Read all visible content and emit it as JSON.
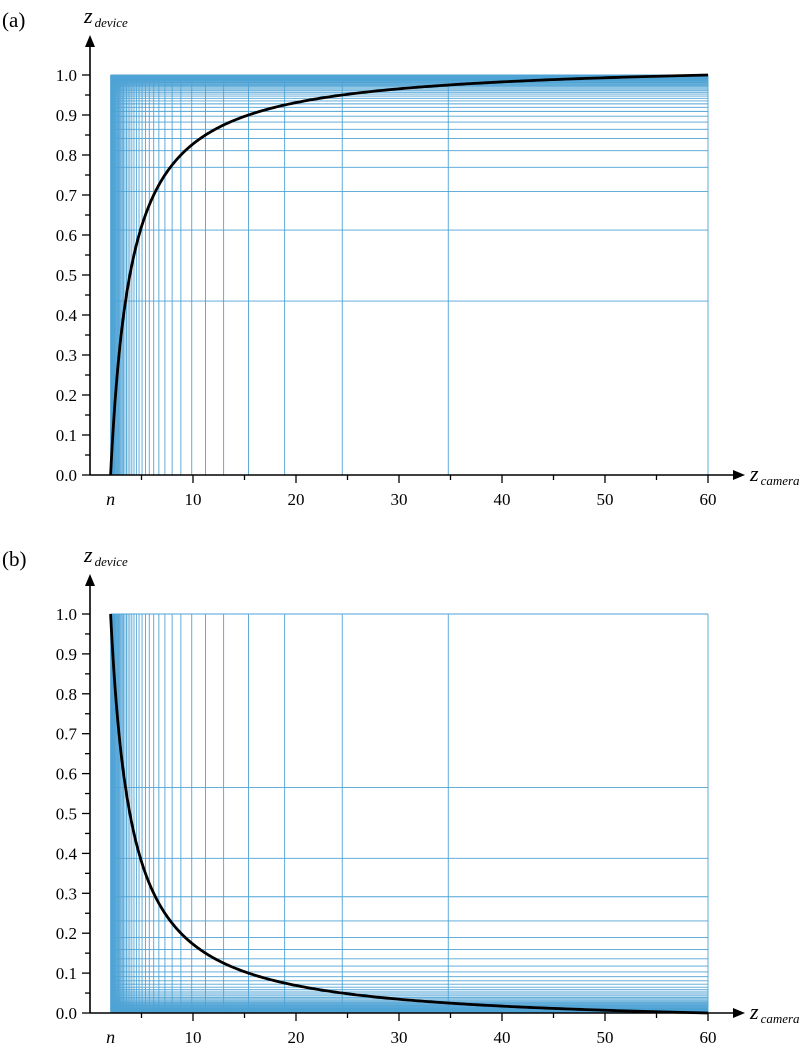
{
  "chart_data": [
    {
      "type": "line",
      "panel_label": "(a)",
      "xlabel": "z",
      "xlabel_sub": "camera",
      "ylabel": "z",
      "ylabel_sub": "device",
      "near_label": "n",
      "near": 2,
      "far": 60,
      "xlim": [
        0,
        60
      ],
      "ylim": [
        0,
        1
      ],
      "x_ticks": [
        10,
        20,
        30,
        40,
        50,
        60
      ],
      "x_tick_labels": [
        "10",
        "20",
        "30",
        "40",
        "50",
        "60"
      ],
      "y_ticks": [
        0.0,
        0.1,
        0.2,
        0.3,
        0.4,
        0.5,
        0.6,
        0.7,
        0.8,
        0.9,
        1.0
      ],
      "y_tick_labels": [
        "0.0",
        "0.1",
        "0.2",
        "0.3",
        "0.4",
        "0.5",
        "0.6",
        "0.7",
        "0.8",
        "0.9",
        "1.0"
      ],
      "series": [
        {
          "x": [
            2,
            2.5,
            3,
            4,
            5,
            6,
            7,
            8,
            10,
            12,
            15,
            20,
            25,
            30,
            35,
            40,
            45,
            50,
            55,
            60
          ],
          "y": [
            0.0,
            0.207,
            0.345,
            0.517,
            0.621,
            0.69,
            0.739,
            0.776,
            0.828,
            0.862,
            0.894,
            0.931,
            0.952,
            0.966,
            0.975,
            0.983,
            0.989,
            0.993,
            0.997,
            1.0
          ]
        }
      ],
      "grid": "uniform-in-z_device",
      "grid_divisions": 40
    },
    {
      "type": "line",
      "panel_label": "(b)",
      "xlabel": "z",
      "xlabel_sub": "camera",
      "ylabel": "z",
      "ylabel_sub": "device",
      "near_label": "n",
      "near": 2,
      "far": 60,
      "xlim": [
        0,
        60
      ],
      "ylim": [
        0,
        1
      ],
      "x_ticks": [
        10,
        20,
        30,
        40,
        50,
        60
      ],
      "x_tick_labels": [
        "10",
        "20",
        "30",
        "40",
        "50",
        "60"
      ],
      "y_ticks": [
        0.0,
        0.1,
        0.2,
        0.3,
        0.4,
        0.5,
        0.6,
        0.7,
        0.8,
        0.9,
        1.0
      ],
      "y_tick_labels": [
        "0.0",
        "0.1",
        "0.2",
        "0.3",
        "0.4",
        "0.5",
        "0.6",
        "0.7",
        "0.8",
        "0.9",
        "1.0"
      ],
      "series": [
        {
          "x": [
            2,
            2.5,
            3,
            4,
            5,
            6,
            7,
            8,
            10,
            12,
            15,
            20,
            25,
            30,
            35,
            40,
            45,
            50,
            55,
            60
          ],
          "y": [
            1.0,
            0.793,
            0.655,
            0.483,
            0.379,
            0.31,
            0.261,
            0.224,
            0.172,
            0.138,
            0.106,
            0.069,
            0.048,
            0.034,
            0.025,
            0.017,
            0.011,
            0.007,
            0.003,
            0.0
          ]
        }
      ],
      "grid": "uniform-in-z_device",
      "grid_divisions": 40
    }
  ],
  "style": {
    "grid_color": "#4fa3d5",
    "curve_color": "#000000",
    "axis_color": "#000000"
  }
}
